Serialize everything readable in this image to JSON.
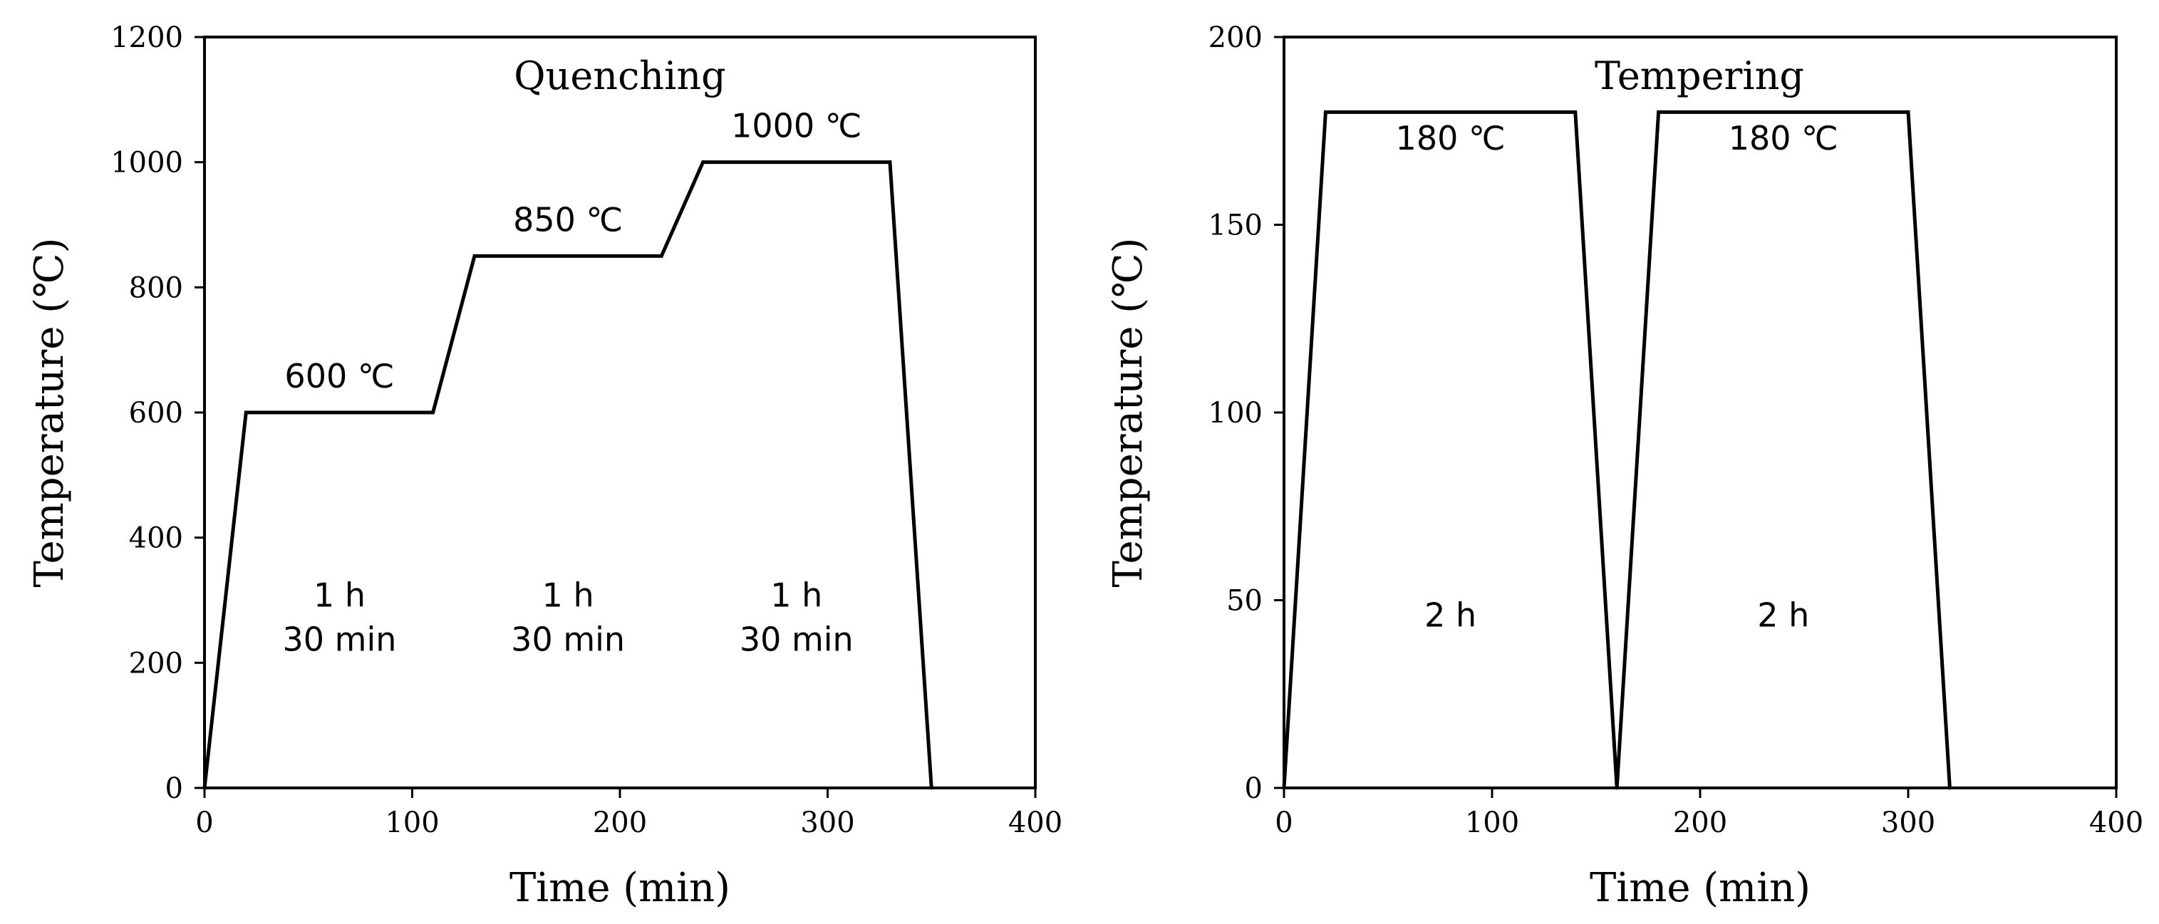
{
  "chart_data": [
    {
      "type": "line",
      "title": "Quenching",
      "xlabel": "Time (min)",
      "ylabel": "Temperature (℃)",
      "xlim": [
        0,
        400
      ],
      "ylim": [
        0,
        1200
      ],
      "xticks": [
        0,
        100,
        200,
        300,
        400
      ],
      "yticks": [
        0,
        200,
        400,
        600,
        800,
        1000,
        1200
      ],
      "grid": false,
      "series": [
        {
          "x": [
            0,
            20,
            110,
            130,
            220,
            240,
            330,
            350
          ],
          "y": [
            0,
            600,
            600,
            850,
            850,
            1000,
            1000,
            0
          ]
        }
      ],
      "annotations": [
        {
          "text": "600 ℃",
          "x": 65,
          "y": 640
        },
        {
          "text": "850 ℃",
          "x": 175,
          "y": 890
        },
        {
          "text": "1000 ℃",
          "x": 285,
          "y": 1040
        },
        {
          "lines": [
            "1 h",
            "30 min"
          ],
          "x": 65,
          "y": 290
        },
        {
          "lines": [
            "1 h",
            "30 min"
          ],
          "x": 175,
          "y": 290
        },
        {
          "lines": [
            "1 h",
            "30 min"
          ],
          "x": 285,
          "y": 290
        }
      ]
    },
    {
      "type": "line",
      "title": "Tempering",
      "xlabel": "Time (min)",
      "ylabel": "Temperature (℃)",
      "xlim": [
        0,
        400
      ],
      "ylim": [
        0,
        200
      ],
      "xticks": [
        0,
        100,
        200,
        300,
        400
      ],
      "yticks": [
        0,
        50,
        100,
        150,
        200
      ],
      "grid": false,
      "series": [
        {
          "x": [
            0,
            20,
            140,
            160,
            180,
            300,
            320
          ],
          "y": [
            0,
            180,
            180,
            0,
            180,
            180,
            0
          ]
        }
      ],
      "annotations": [
        {
          "text": "180 ℃",
          "x": 80,
          "y": 170
        },
        {
          "text": "180 ℃",
          "x": 240,
          "y": 170
        },
        {
          "lines": [
            "2 h"
          ],
          "x": 80,
          "y": 43
        },
        {
          "lines": [
            "2 h"
          ],
          "x": 240,
          "y": 43
        }
      ]
    }
  ]
}
